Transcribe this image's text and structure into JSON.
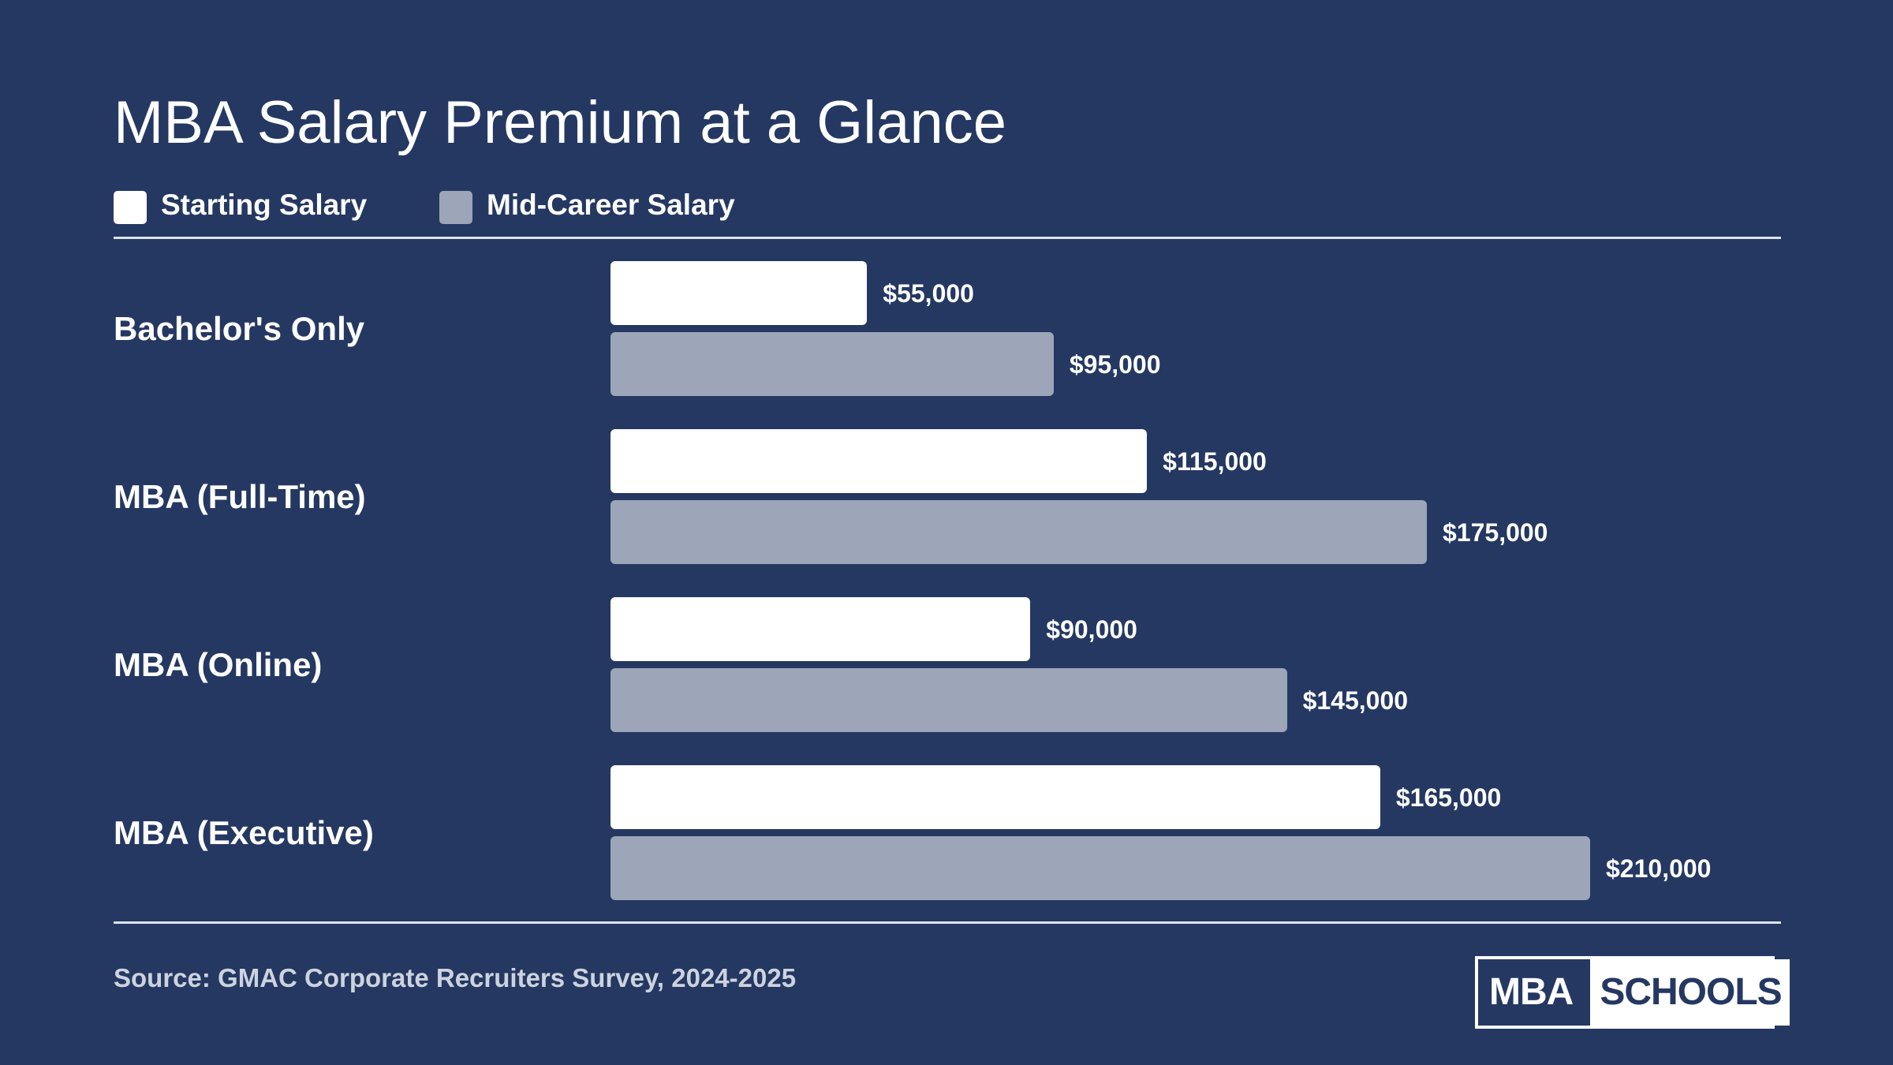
{
  "chart_data": {
    "type": "bar",
    "orientation": "horizontal",
    "title": "MBA Salary Premium at a Glance",
    "categories": [
      "Bachelor's Only",
      "MBA (Full-Time)",
      "MBA (Online)",
      "MBA (Executive)"
    ],
    "series": [
      {
        "name": "Starting Salary",
        "color": "#ffffff",
        "values": [
          55000,
          115000,
          90000,
          165000
        ],
        "labels": [
          "$55,000",
          "$115,000",
          "$90,000",
          "$165,000"
        ]
      },
      {
        "name": "Mid-Career Salary",
        "color": "#9ca6b8",
        "values": [
          95000,
          175000,
          145000,
          210000
        ],
        "labels": [
          "$95,000",
          "$175,000",
          "$145,000",
          "$210,000"
        ]
      }
    ],
    "xlim": [
      0,
      210000
    ],
    "grid": false,
    "legend_position": "top-left"
  },
  "source": "Source: GMAC Corporate Recruiters Survey, 2024-2025",
  "logo": {
    "left_text": "MBA",
    "right_text": "SCHOOLS"
  },
  "colors": {
    "background": "#243862",
    "starting": "#ffffff",
    "mid_career": "#9ca6b8"
  }
}
